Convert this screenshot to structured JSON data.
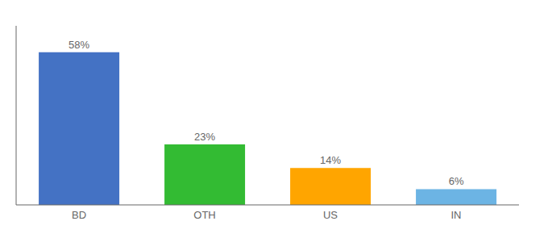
{
  "chart_data": {
    "type": "bar",
    "categories": [
      "BD",
      "OTH",
      "US",
      "IN"
    ],
    "values": [
      58,
      23,
      14,
      6
    ],
    "value_labels": [
      "58%",
      "23%",
      "14%",
      "6%"
    ],
    "colors": [
      "#4472C4",
      "#33BB33",
      "#FFA500",
      "#6CB4E4"
    ],
    "ylim": [
      0,
      68
    ],
    "data_labels": true,
    "tick_labels": "x",
    "grid": false
  }
}
